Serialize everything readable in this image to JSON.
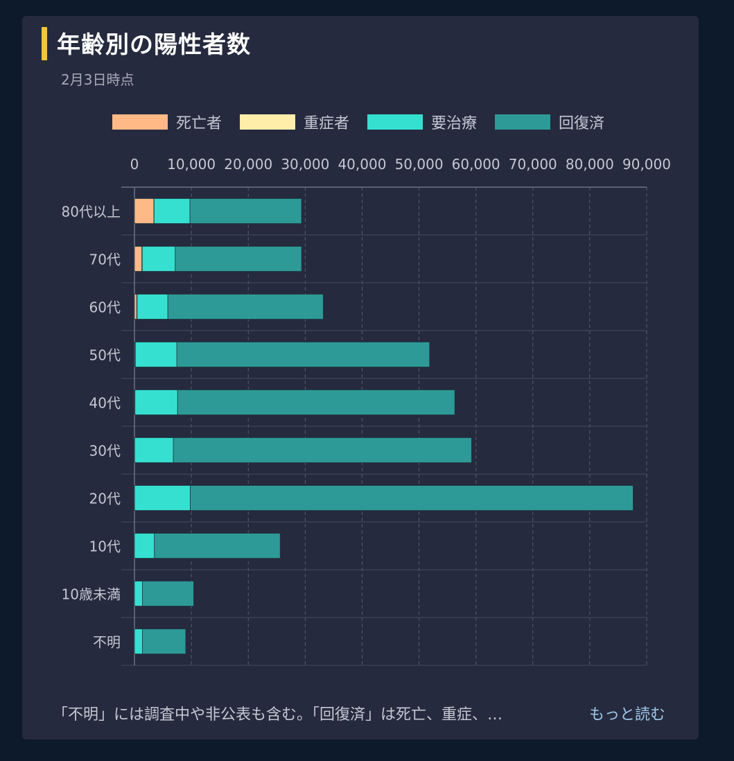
{
  "header": {
    "title": "年齢別の陽性者数",
    "subtitle": "2月3日時点"
  },
  "colors": {
    "background": "#0d1a2b",
    "card": "#252a3e",
    "accent": "#f2c53d",
    "text": "#c5c8d2",
    "grid": "#4a5066"
  },
  "chart_data": {
    "type": "bar",
    "orientation": "horizontal",
    "stacked": true,
    "categories": [
      "80代以上",
      "70代",
      "60代",
      "50代",
      "40代",
      "30代",
      "20代",
      "10代",
      "10歳未満",
      "不明"
    ],
    "series": [
      {
        "name": "死亡者",
        "color": "#ffb987",
        "values": [
          3400,
          1300,
          400,
          100,
          50,
          20,
          10,
          0,
          0,
          0
        ]
      },
      {
        "name": "重症者",
        "color": "#ffeeaa",
        "values": [
          50,
          60,
          70,
          50,
          30,
          10,
          5,
          0,
          0,
          0
        ]
      },
      {
        "name": "要治療",
        "color": "#36e0d0",
        "values": [
          6300,
          5800,
          5400,
          7300,
          7500,
          6800,
          9800,
          3500,
          1400,
          1400
        ]
      },
      {
        "name": "回復済",
        "color": "#2e9a98",
        "values": [
          19600,
          22200,
          27300,
          44400,
          48700,
          52400,
          77800,
          22100,
          9000,
          7600
        ]
      }
    ],
    "xlim": [
      0,
      90000
    ],
    "xticks": [
      0,
      10000,
      20000,
      30000,
      40000,
      50000,
      60000,
      70000,
      80000,
      90000
    ],
    "xtick_labels": [
      "0",
      "10,000",
      "20,000",
      "30,000",
      "40,000",
      "50,000",
      "60,000",
      "70,000",
      "80,000",
      "90,000"
    ],
    "legend_position": "top",
    "grid": true
  },
  "footer": {
    "note": "「不明」には調査中や非公表も含む。「回復済」は死亡、重症、…",
    "more_label": "もっと読む"
  }
}
